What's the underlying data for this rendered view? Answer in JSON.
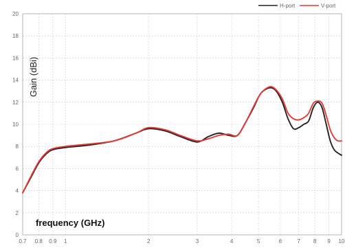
{
  "chart_data": {
    "type": "line",
    "title": "",
    "xlabel": "frequency (GHz)",
    "ylabel": "Gain (dBi)",
    "x_scale": "log",
    "xlim": [
      0.7,
      10
    ],
    "ylim": [
      0,
      20
    ],
    "grid": true,
    "legend_position": "top-right",
    "x_ticks": [
      0.7,
      0.8,
      0.9,
      1,
      2,
      3,
      4,
      5,
      6,
      7,
      8,
      9,
      10
    ],
    "x_tick_labels": [
      "0.7",
      "0.8",
      "0.9",
      "1",
      "2",
      "3",
      "4",
      "5",
      "6",
      "7",
      "8",
      "9",
      "10"
    ],
    "y_ticks": [
      0,
      2,
      4,
      6,
      8,
      10,
      12,
      14,
      16,
      18,
      20
    ],
    "y_tick_labels": [
      "0",
      "2",
      "4",
      "6",
      "8",
      "10",
      "12",
      "14",
      "16",
      "18",
      "20"
    ],
    "series": [
      {
        "name": "H-port",
        "color": "#222222",
        "x": [
          0.7,
          0.75,
          0.8,
          0.85,
          0.9,
          1.0,
          1.2,
          1.5,
          1.8,
          2.0,
          2.3,
          2.6,
          3.0,
          3.3,
          3.6,
          3.9,
          4.2,
          4.5,
          4.8,
          5.1,
          5.5,
          5.8,
          6.1,
          6.4,
          6.7,
          7.0,
          7.3,
          7.6,
          7.9,
          8.2,
          8.5,
          8.8,
          9.1,
          9.4,
          9.7,
          10.0
        ],
        "y": [
          3.8,
          5.2,
          6.5,
          7.3,
          7.7,
          7.9,
          8.1,
          8.5,
          9.2,
          9.6,
          9.4,
          8.9,
          8.4,
          8.9,
          9.2,
          9.0,
          9.0,
          10.2,
          11.5,
          12.8,
          13.3,
          13.0,
          12.0,
          10.5,
          9.6,
          9.7,
          10.0,
          10.3,
          11.5,
          12.0,
          11.5,
          10.0,
          8.5,
          7.7,
          7.4,
          7.2
        ]
      },
      {
        "name": "V-port",
        "color": "#e53935",
        "x": [
          0.7,
          0.75,
          0.8,
          0.85,
          0.9,
          1.0,
          1.2,
          1.5,
          1.8,
          2.0,
          2.3,
          2.6,
          3.0,
          3.3,
          3.6,
          3.9,
          4.2,
          4.5,
          4.8,
          5.1,
          5.5,
          5.8,
          6.1,
          6.4,
          6.7,
          7.0,
          7.3,
          7.6,
          7.9,
          8.2,
          8.5,
          8.8,
          9.1,
          9.4,
          9.7,
          10.0
        ],
        "y": [
          3.8,
          5.3,
          6.6,
          7.4,
          7.8,
          8.0,
          8.2,
          8.5,
          9.2,
          9.7,
          9.5,
          9.0,
          8.5,
          8.7,
          9.0,
          9.1,
          9.0,
          10.2,
          11.6,
          12.8,
          13.4,
          13.1,
          12.3,
          11.0,
          10.5,
          10.4,
          10.6,
          11.0,
          11.9,
          12.1,
          11.9,
          10.8,
          9.5,
          8.8,
          8.5,
          8.5
        ]
      }
    ]
  }
}
